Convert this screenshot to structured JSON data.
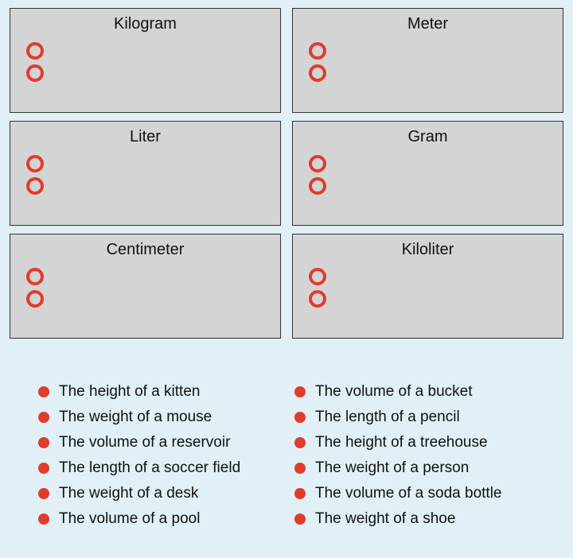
{
  "categories": [
    {
      "id": "kilogram",
      "title": "Kilogram"
    },
    {
      "id": "meter",
      "title": "Meter"
    },
    {
      "id": "liter",
      "title": "Liter"
    },
    {
      "id": "gram",
      "title": "Gram"
    },
    {
      "id": "centimeter",
      "title": "Centimeter"
    },
    {
      "id": "kiloliter",
      "title": "Kiloliter"
    }
  ],
  "items_left": [
    "The height of a kitten",
    "The weight of a mouse",
    "The volume of a reservoir",
    "The length of a soccer field",
    "The weight of a desk",
    "The volume of a pool"
  ],
  "items_right": [
    "The volume of a bucket",
    "The length of a pencil",
    "The height of a treehouse",
    "The weight of a person",
    "The volume of a soda bottle",
    "The weight of a shoe"
  ],
  "colors": {
    "page_bg": "#e0f0f6",
    "card_bg": "#d4d4d4",
    "card_border": "#333333",
    "accent": "#e13b2b",
    "text": "#111111"
  }
}
